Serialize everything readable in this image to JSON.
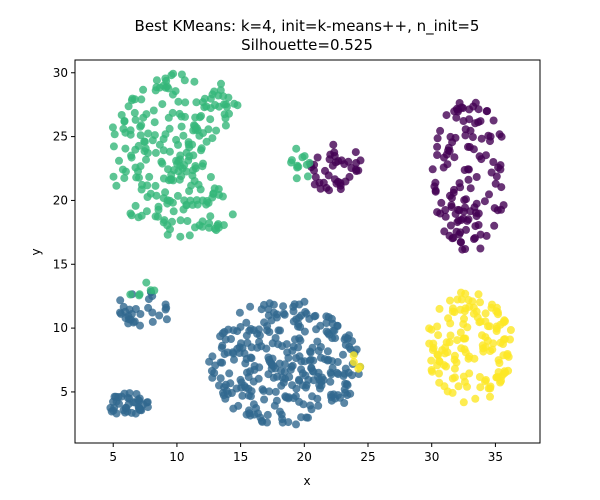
{
  "chart_data": {
    "type": "scatter",
    "title_line1": "Best KMeans: k=4, init=k-means++, n_init=5",
    "title_line2": "Silhouette=0.525",
    "xlabel": "x",
    "ylabel": "y",
    "xlim": [
      2,
      38.5
    ],
    "ylim": [
      1,
      31
    ],
    "xticks": [
      5,
      10,
      15,
      20,
      25,
      30,
      35
    ],
    "yticks": [
      5,
      10,
      15,
      20,
      25,
      30
    ],
    "grid": false,
    "legend": false,
    "marker_alpha": 0.8,
    "cluster_colors": {
      "c0": "#440154",
      "c1": "#31688e",
      "c2": "#35b779",
      "c3": "#fde725"
    },
    "clusters": [
      {
        "id": "c0",
        "color_key": "c0",
        "shape": "ellipse",
        "center": [
          33.0,
          22.0
        ],
        "radius": [
          3.0,
          6.0
        ],
        "count": 130
      },
      {
        "id": "c0b",
        "color_key": "c0",
        "shape": "ellipse",
        "center": [
          22.3,
          22.6
        ],
        "radius": [
          2.2,
          2.0
        ],
        "count": 40
      },
      {
        "id": "c1",
        "color_key": "c1",
        "shape": "ellipse",
        "center": [
          18.5,
          7.3
        ],
        "radius": [
          6.0,
          5.0
        ],
        "count": 300
      },
      {
        "id": "c1b",
        "color_key": "c1",
        "shape": "ellipse",
        "center": [
          7.4,
          11.4
        ],
        "radius": [
          2.3,
          1.5
        ],
        "count": 30
      },
      {
        "id": "c1c",
        "color_key": "c1",
        "shape": "ellipse",
        "center": [
          6.2,
          4.0
        ],
        "radius": [
          1.6,
          1.0
        ],
        "count": 40
      },
      {
        "id": "c2",
        "color_key": "c2",
        "shape": "crescent",
        "center": [
          10.5,
          23.5
        ],
        "radius": [
          6.0,
          6.5
        ],
        "cut_center": [
          18.0,
          23.0
        ],
        "cut_radius": [
          5.2,
          4.7
        ],
        "count": 240
      },
      {
        "id": "c2b",
        "color_key": "c2",
        "shape": "ellipse",
        "center": [
          19.5,
          22.6
        ],
        "radius": [
          1.0,
          1.5
        ],
        "count": 12
      },
      {
        "id": "c2c",
        "color_key": "c2",
        "shape": "ellipse",
        "center": [
          7.2,
          13.1
        ],
        "radius": [
          1.5,
          0.6
        ],
        "count": 6
      },
      {
        "id": "c3",
        "color_key": "c3",
        "shape": "ellipse",
        "center": [
          33.0,
          8.5
        ],
        "radius": [
          3.4,
          4.5
        ],
        "count": 140
      },
      {
        "id": "c3b",
        "color_key": "c3",
        "shape": "ellipse",
        "center": [
          24.3,
          7.5
        ],
        "radius": [
          0.6,
          0.9
        ],
        "count": 4
      }
    ]
  }
}
